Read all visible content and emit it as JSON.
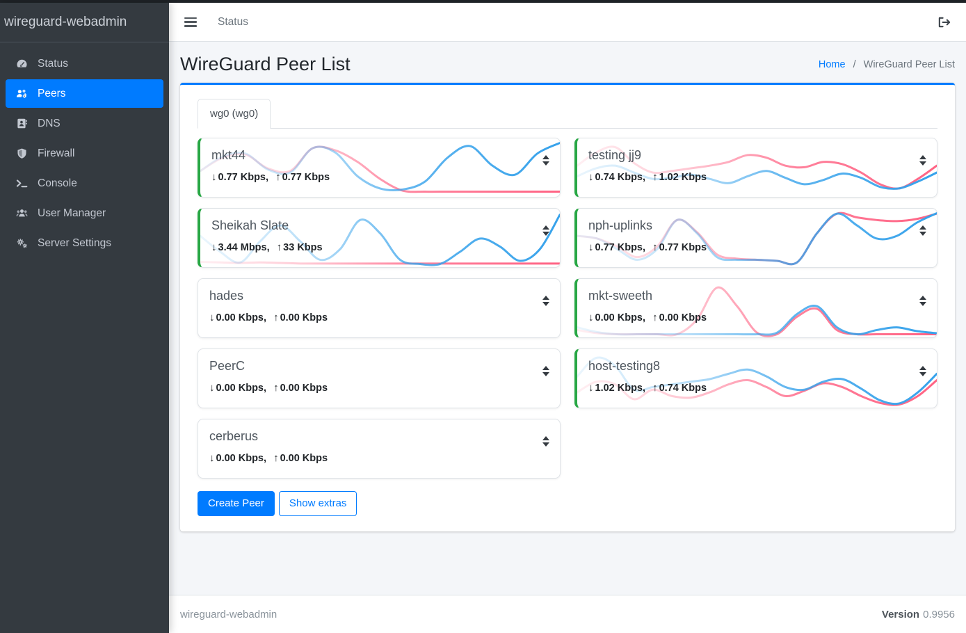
{
  "sidebar": {
    "brand": "wireguard-webadmin",
    "items": [
      {
        "label": "Status",
        "icon": "tachometer-icon",
        "active": false
      },
      {
        "label": "Peers",
        "icon": "users-gear-icon",
        "active": true
      },
      {
        "label": "DNS",
        "icon": "address-book-icon",
        "active": false
      },
      {
        "label": "Firewall",
        "icon": "shield-icon",
        "active": false
      },
      {
        "label": "Console",
        "icon": "terminal-icon",
        "active": false
      },
      {
        "label": "User Manager",
        "icon": "users-icon",
        "active": false
      },
      {
        "label": "Server Settings",
        "icon": "gears-icon",
        "active": false
      }
    ]
  },
  "topbar": {
    "nav_link": "Status"
  },
  "page": {
    "title": "WireGuard Peer List",
    "breadcrumb": {
      "home": "Home",
      "separator": "/",
      "current": "WireGuard Peer List"
    }
  },
  "tabs": [
    {
      "label": "wg0 (wg0)",
      "active": true
    }
  ],
  "peers": [
    {
      "name": "mkt44",
      "down_label": "0.77 Kbps,",
      "up_label": "0.77 Kbps",
      "online": true,
      "column": 0,
      "spark": {
        "down": [
          0.45,
          0.72,
          0.78,
          0.48,
          0.42,
          0.88,
          0.8,
          0.35,
          0.12,
          0.1,
          0.25,
          0.7,
          0.92,
          0.55,
          0.38,
          0.78,
          0.98
        ],
        "up": [
          0.45,
          0.7,
          0.76,
          0.5,
          0.45,
          0.88,
          0.84,
          0.62,
          0.3,
          0.08,
          0.06,
          0.06,
          0.06,
          0.06,
          0.06,
          0.06,
          0.06
        ]
      }
    },
    {
      "name": "Sheikah Slate",
      "down_label": "3.44 Mbps,",
      "up_label": "33 Kbps",
      "online": true,
      "column": 0,
      "spark": {
        "down": [
          0.55,
          0.25,
          0.05,
          0.45,
          0.75,
          0.45,
          0.1,
          0.3,
          0.85,
          0.6,
          0.1,
          0.02,
          0.02,
          0.25,
          0.5,
          0.35,
          0.08,
          0.3,
          0.95
        ],
        "up": [
          0.06,
          0.05,
          0.04,
          0.05,
          0.04,
          0.03,
          0.03,
          0.03,
          0.03,
          0.03,
          0.03,
          0.03,
          0.03,
          0.03,
          0.03,
          0.03,
          0.03,
          0.03,
          0.03
        ]
      }
    },
    {
      "name": "hades",
      "down_label": "0.00 Kbps,",
      "up_label": "0.00 Kbps",
      "online": false,
      "column": 0,
      "spark": {
        "down": [
          0.02,
          0.02,
          0.02,
          0.02,
          0.02,
          0.02,
          0.02,
          0.02
        ],
        "up": [
          0.02,
          0.02,
          0.02,
          0.02,
          0.02,
          0.02,
          0.02,
          0.02
        ]
      }
    },
    {
      "name": "PeerC",
      "down_label": "0.00 Kbps,",
      "up_label": "0.00 Kbps",
      "online": false,
      "column": 0,
      "spark": {
        "down": [
          0.02,
          0.02,
          0.02,
          0.02,
          0.02,
          0.02,
          0.02,
          0.02
        ],
        "up": [
          0.02,
          0.02,
          0.02,
          0.02,
          0.02,
          0.02,
          0.02,
          0.02
        ]
      }
    },
    {
      "name": "cerberus",
      "down_label": "0.00 Kbps,",
      "up_label": "0.00 Kbps",
      "online": false,
      "column": 0,
      "spark": {
        "down": [
          0.02,
          0.02,
          0.02,
          0.02,
          0.02,
          0.02,
          0.02,
          0.02
        ],
        "up": [
          0.02,
          0.02,
          0.02,
          0.02,
          0.02,
          0.02,
          0.02,
          0.02
        ]
      }
    },
    {
      "name": "testing jj9",
      "down_label": "0.74 Kbps,",
      "up_label": "1.02 Kbps",
      "online": true,
      "column": 1,
      "spark": {
        "down": [
          0.35,
          0.5,
          0.55,
          0.42,
          0.3,
          0.32,
          0.38,
          0.3,
          0.22,
          0.35,
          0.45,
          0.32,
          0.2,
          0.28,
          0.4,
          0.32,
          0.15,
          0.12,
          0.25,
          0.42
        ],
        "up": [
          0.55,
          0.8,
          0.9,
          0.6,
          0.42,
          0.45,
          0.5,
          0.55,
          0.62,
          0.75,
          0.7,
          0.55,
          0.52,
          0.62,
          0.58,
          0.42,
          0.2,
          0.12,
          0.3,
          0.55
        ]
      }
    },
    {
      "name": "nph-uplinks",
      "down_label": "0.77 Kbps,",
      "up_label": "0.77 Kbps",
      "online": true,
      "column": 1,
      "spark": {
        "down": [
          0.55,
          0.5,
          0.3,
          0.1,
          0.3,
          0.85,
          0.6,
          0.15,
          0.1,
          0.1,
          0.08,
          0.05,
          0.6,
          0.97,
          0.75,
          0.5,
          0.55,
          0.8,
          0.98
        ],
        "up": [
          0.55,
          0.5,
          0.35,
          0.15,
          0.35,
          0.85,
          0.62,
          0.2,
          0.12,
          0.1,
          0.08,
          0.05,
          0.6,
          0.97,
          0.9,
          0.85,
          0.83,
          0.87,
          0.97
        ]
      }
    },
    {
      "name": "mkt-sweeth",
      "down_label": "0.00 Kbps,",
      "up_label": "0.00 Kbps",
      "online": true,
      "column": 1,
      "spark": {
        "down": [
          0.15,
          0.06,
          0.02,
          0.02,
          0.02,
          0.02,
          0.02,
          0.02,
          0.02,
          0.02,
          0.05,
          0.4,
          0.55,
          0.15,
          0.02,
          0.1,
          0.15,
          0.08,
          0.04
        ],
        "up": [
          0.1,
          0.04,
          0.02,
          0.02,
          0.02,
          0.02,
          0.3,
          0.9,
          0.55,
          0.05,
          0.02,
          0.35,
          0.5,
          0.1,
          0.02,
          0.02,
          0.02,
          0.02,
          0.02
        ]
      }
    },
    {
      "name": "host-testing8",
      "down_label": "1.02 Kbps,",
      "up_label": "0.74 Kbps",
      "online": true,
      "column": 1,
      "spark": {
        "down": [
          0.55,
          0.9,
          0.75,
          0.3,
          0.35,
          0.4,
          0.45,
          0.5,
          0.6,
          0.68,
          0.55,
          0.35,
          0.3,
          0.45,
          0.5,
          0.32,
          0.1,
          0.04,
          0.25,
          0.6
        ],
        "up": [
          0.25,
          0.45,
          0.4,
          0.12,
          0.3,
          0.18,
          0.15,
          0.25,
          0.4,
          0.48,
          0.35,
          0.18,
          0.28,
          0.42,
          0.35,
          0.18,
          0.05,
          0.02,
          0.18,
          0.48
        ]
      }
    }
  ],
  "actions": {
    "create_peer": "Create Peer",
    "show_extras": "Show extras"
  },
  "footer": {
    "left": "wireguard-webadmin",
    "version_label": "Version",
    "version_value": "0.9956"
  },
  "colors": {
    "accent": "#007bff",
    "online_green": "#28a745",
    "spark_download": "#36a2eb",
    "spark_upload": "#ff6384",
    "sidebar_bg": "#343a40"
  }
}
